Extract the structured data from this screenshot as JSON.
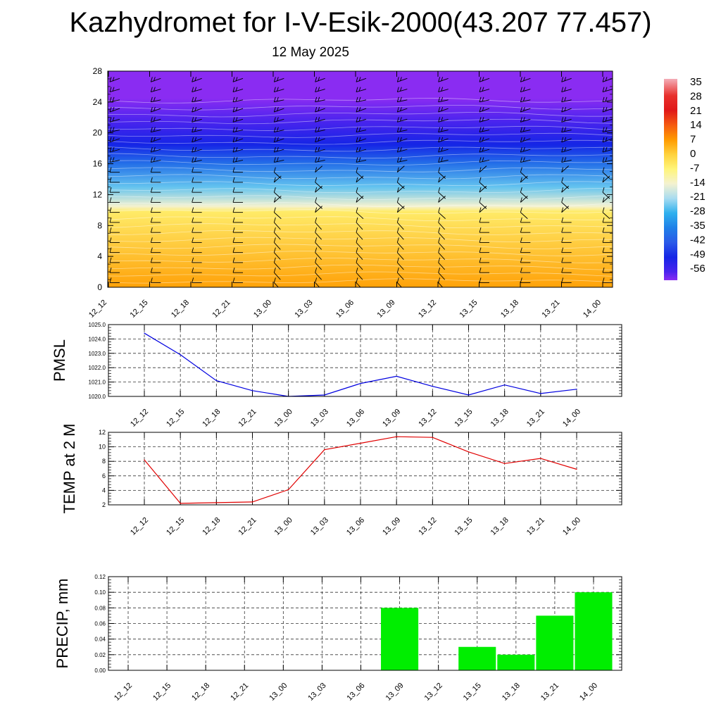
{
  "title": "Kazhydromet for I-V-Esik-2000(43.207 77.457)",
  "date": "12 May 2025",
  "chart_data": [
    {
      "type": "heatmap",
      "title": "",
      "x_categories": [
        "12_12",
        "12_15",
        "12_18",
        "12_21",
        "13_00",
        "13_03",
        "13_06",
        "13_09",
        "13_12",
        "13_15",
        "13_18",
        "13_21",
        "14_00"
      ],
      "y_ticks": [
        0,
        4,
        8,
        12,
        16,
        20,
        24,
        28
      ],
      "ylim": [
        0,
        28
      ],
      "colorbar_labels": [
        "35",
        "28",
        "21",
        "14",
        "7",
        "0",
        "-7",
        "-14",
        "-21",
        "-28",
        "-35",
        "-42",
        "-49",
        "-56"
      ],
      "color_stops": [
        {
          "v": 36,
          "color": "#f4aeb8"
        },
        {
          "v": 28,
          "color": "#e8302c"
        },
        {
          "v": 21,
          "color": "#e01818"
        },
        {
          "v": 14,
          "color": "#f55a10"
        },
        {
          "v": 7,
          "color": "#ff9a00"
        },
        {
          "v": 0,
          "color": "#ffd23c"
        },
        {
          "v": -7,
          "color": "#fff57a"
        },
        {
          "v": -14,
          "color": "#f4f2d0"
        },
        {
          "v": -21,
          "color": "#a8dcf0"
        },
        {
          "v": -28,
          "color": "#2fb0ee"
        },
        {
          "v": -35,
          "color": "#1f80e8"
        },
        {
          "v": -42,
          "color": "#2a5ae8"
        },
        {
          "v": -49,
          "color": "#1525e6"
        },
        {
          "v": -56,
          "color": "#4a24ee"
        },
        {
          "v": -60,
          "color": "#8a2cf2"
        }
      ],
      "temperature_profile": [
        {
          "h": 0,
          "t": 6
        },
        {
          "h": 9.8,
          "t": -5
        },
        {
          "h": 10.5,
          "t": -14
        },
        {
          "h": 13,
          "t": -25
        },
        {
          "h": 16,
          "t": -38
        },
        {
          "h": 18.5,
          "t": -49
        },
        {
          "h": 21.5,
          "t": -56
        },
        {
          "h": 24.5,
          "t": -60
        },
        {
          "h": 28,
          "t": -60
        }
      ]
    },
    {
      "type": "line",
      "ylabel": "PMSL",
      "categories": [
        "12_12",
        "12_15",
        "12_18",
        "12_21",
        "13_00",
        "13_03",
        "13_06",
        "13_09",
        "13_12",
        "13_15",
        "13_18",
        "13_21",
        "14_00"
      ],
      "values": [
        1024.4,
        1022.9,
        1021.1,
        1020.4,
        1020.0,
        1020.1,
        1020.9,
        1021.4,
        1020.7,
        1020.1,
        1020.8,
        1020.2,
        1020.5
      ],
      "ylim": [
        1020.0,
        1025.0
      ],
      "y_ticks": [
        "1020.0",
        "1021.0",
        "1022.0",
        "1023.0",
        "1024.0",
        "1025.0"
      ],
      "color": "#0000e0",
      "grid": true
    },
    {
      "type": "line",
      "ylabel": "TEMP at 2 M",
      "categories": [
        "12_12",
        "12_15",
        "12_18",
        "12_21",
        "13_00",
        "13_03",
        "13_06",
        "13_09",
        "13_12",
        "13_15",
        "13_18",
        "13_21",
        "14_00"
      ],
      "values": [
        8.2,
        2.2,
        2.3,
        2.4,
        4.1,
        9.6,
        10.5,
        11.4,
        11.3,
        9.3,
        7.7,
        8.4,
        6.9
      ],
      "ylim": [
        2,
        12
      ],
      "y_ticks": [
        "2",
        "4",
        "6",
        "8",
        "10",
        "12"
      ],
      "color": "#e00000",
      "grid": true
    },
    {
      "type": "bar",
      "ylabel": "PRECIP, mm",
      "categories": [
        "12_12",
        "12_15",
        "12_18",
        "12_21",
        "13_00",
        "13_03",
        "13_06",
        "13_09",
        "13_12",
        "13_15",
        "13_18",
        "13_21",
        "14_00"
      ],
      "values": [
        0,
        0,
        0,
        0,
        0,
        0,
        0,
        0.08,
        0,
        0.03,
        0.02,
        0.07,
        0.1
      ],
      "ylim": [
        0,
        0.12
      ],
      "y_ticks": [
        "0.00",
        "0.02",
        "0.04",
        "0.06",
        "0.08",
        "0.10",
        "0.12"
      ],
      "color": "#00ee00",
      "grid": true
    }
  ]
}
